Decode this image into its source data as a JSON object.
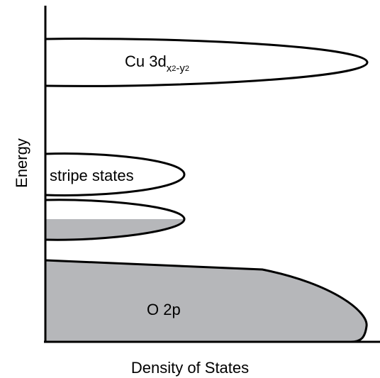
{
  "axes": {
    "x_label": "Density of States",
    "y_label": "Energy"
  },
  "bands": {
    "cu_3d": {
      "label_main": "Cu 3d",
      "label_sub_x": "x",
      "label_sup_1": "2",
      "label_sub_dash_y": "-y",
      "label_sup_2": "2",
      "filled": false
    },
    "stripe_upper": {
      "label": "stripe states",
      "filled": false
    },
    "stripe_lower": {
      "label": "",
      "filled": "partial",
      "fill_fraction": 0.5
    },
    "o_2p": {
      "label": "O 2p",
      "filled": true
    }
  },
  "colors": {
    "outline": "#000000",
    "filled": "#b6b7ba",
    "background": "#ffffff"
  }
}
